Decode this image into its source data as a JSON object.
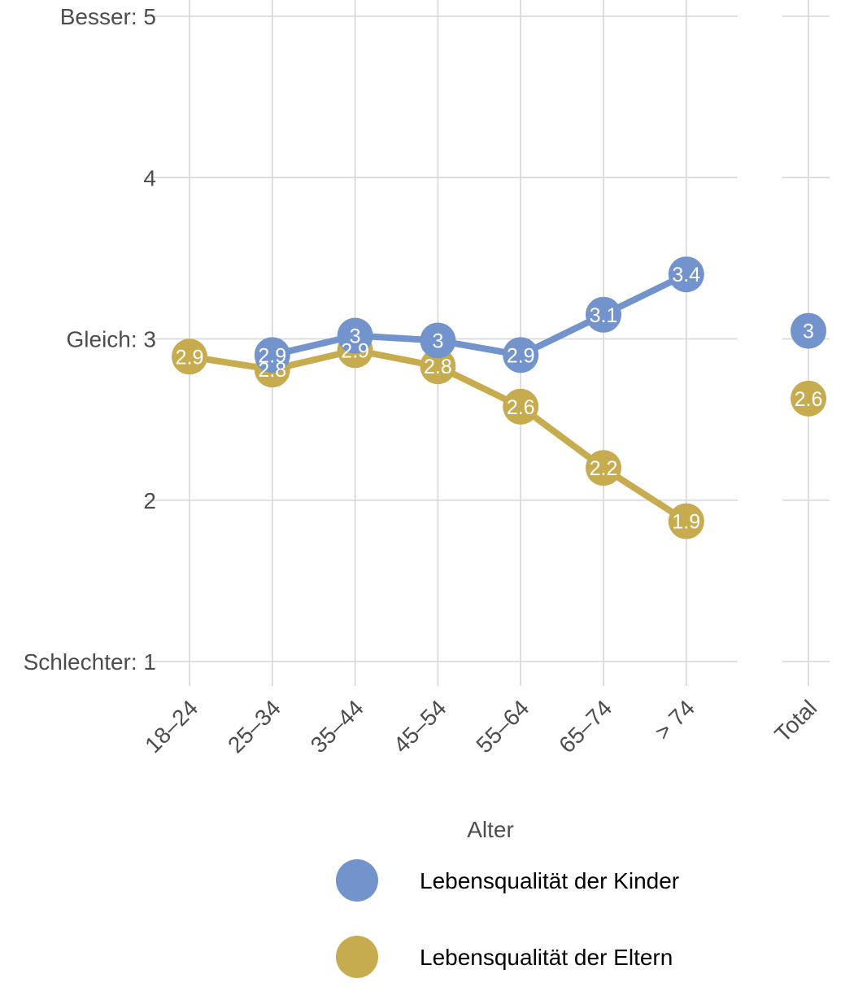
{
  "chart_data": {
    "type": "line",
    "xlabel": "Alter",
    "ylabel": "",
    "ylim": [
      1,
      5
    ],
    "categories": [
      "18–24",
      "25–34",
      "35–44",
      "45–54",
      "55–64",
      "65–74",
      "> 74"
    ],
    "total_label": "Total",
    "yticks": [
      {
        "value": 5,
        "label": "Besser: 5"
      },
      {
        "value": 4,
        "label": "4"
      },
      {
        "value": 3,
        "label": "Gleich: 3"
      },
      {
        "value": 2,
        "label": "2"
      },
      {
        "value": 1,
        "label": "Schlechter: 1"
      }
    ],
    "grid": true,
    "legend_position": "bottom",
    "series": [
      {
        "name": "Lebensqualität der Kinder",
        "color": "#7293cb",
        "values": [
          null,
          2.9,
          3.02,
          2.99,
          2.9,
          3.15,
          3.4
        ],
        "labels": [
          "",
          "2.9",
          "3",
          "3",
          "2.9",
          "3.1",
          "3.4"
        ],
        "total": 3.05,
        "total_label": "3"
      },
      {
        "name": "Lebensqualität der Eltern",
        "color": "#c6ac4f",
        "values": [
          2.89,
          2.81,
          2.93,
          2.83,
          2.58,
          2.2,
          1.87
        ],
        "labels": [
          "2.9",
          "2.8",
          "2.9",
          "2.8",
          "2.6",
          "2.2",
          "1.9"
        ],
        "total": 2.63,
        "total_label": "2.6"
      }
    ]
  }
}
